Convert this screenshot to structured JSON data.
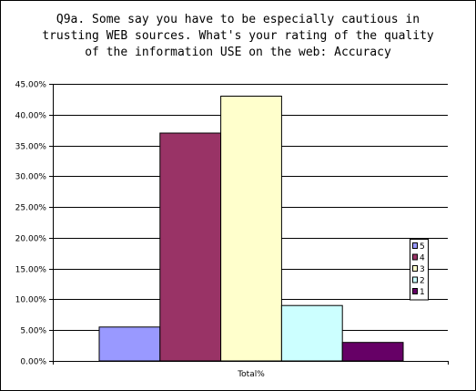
{
  "chart_data": {
    "type": "bar",
    "title_lines": [
      "Q9a.  Some say you have to be especially cautious in",
      "trusting WEB sources.  What's your rating of the quality",
      "of the information USE on the web:  Accuracy"
    ],
    "categories": [
      "Total%"
    ],
    "xlabel": "",
    "ylabel": "",
    "ylim": [
      0,
      0.45
    ],
    "y_ticks": [
      "0.00%",
      "5.00%",
      "10.00%",
      "15.00%",
      "20.00%",
      "25.00%",
      "30.00%",
      "35.00%",
      "40.00%",
      "45.00%"
    ],
    "grid": true,
    "legend_position": "right",
    "series": [
      {
        "name": "5",
        "values": [
          0.055
        ],
        "color": "#9999ff"
      },
      {
        "name": "4",
        "values": [
          0.37
        ],
        "color": "#993366"
      },
      {
        "name": "3",
        "values": [
          0.43
        ],
        "color": "#ffffcc"
      },
      {
        "name": "2",
        "values": [
          0.09
        ],
        "color": "#ccffff"
      },
      {
        "name": "1",
        "values": [
          0.03
        ],
        "color": "#660066"
      }
    ]
  }
}
